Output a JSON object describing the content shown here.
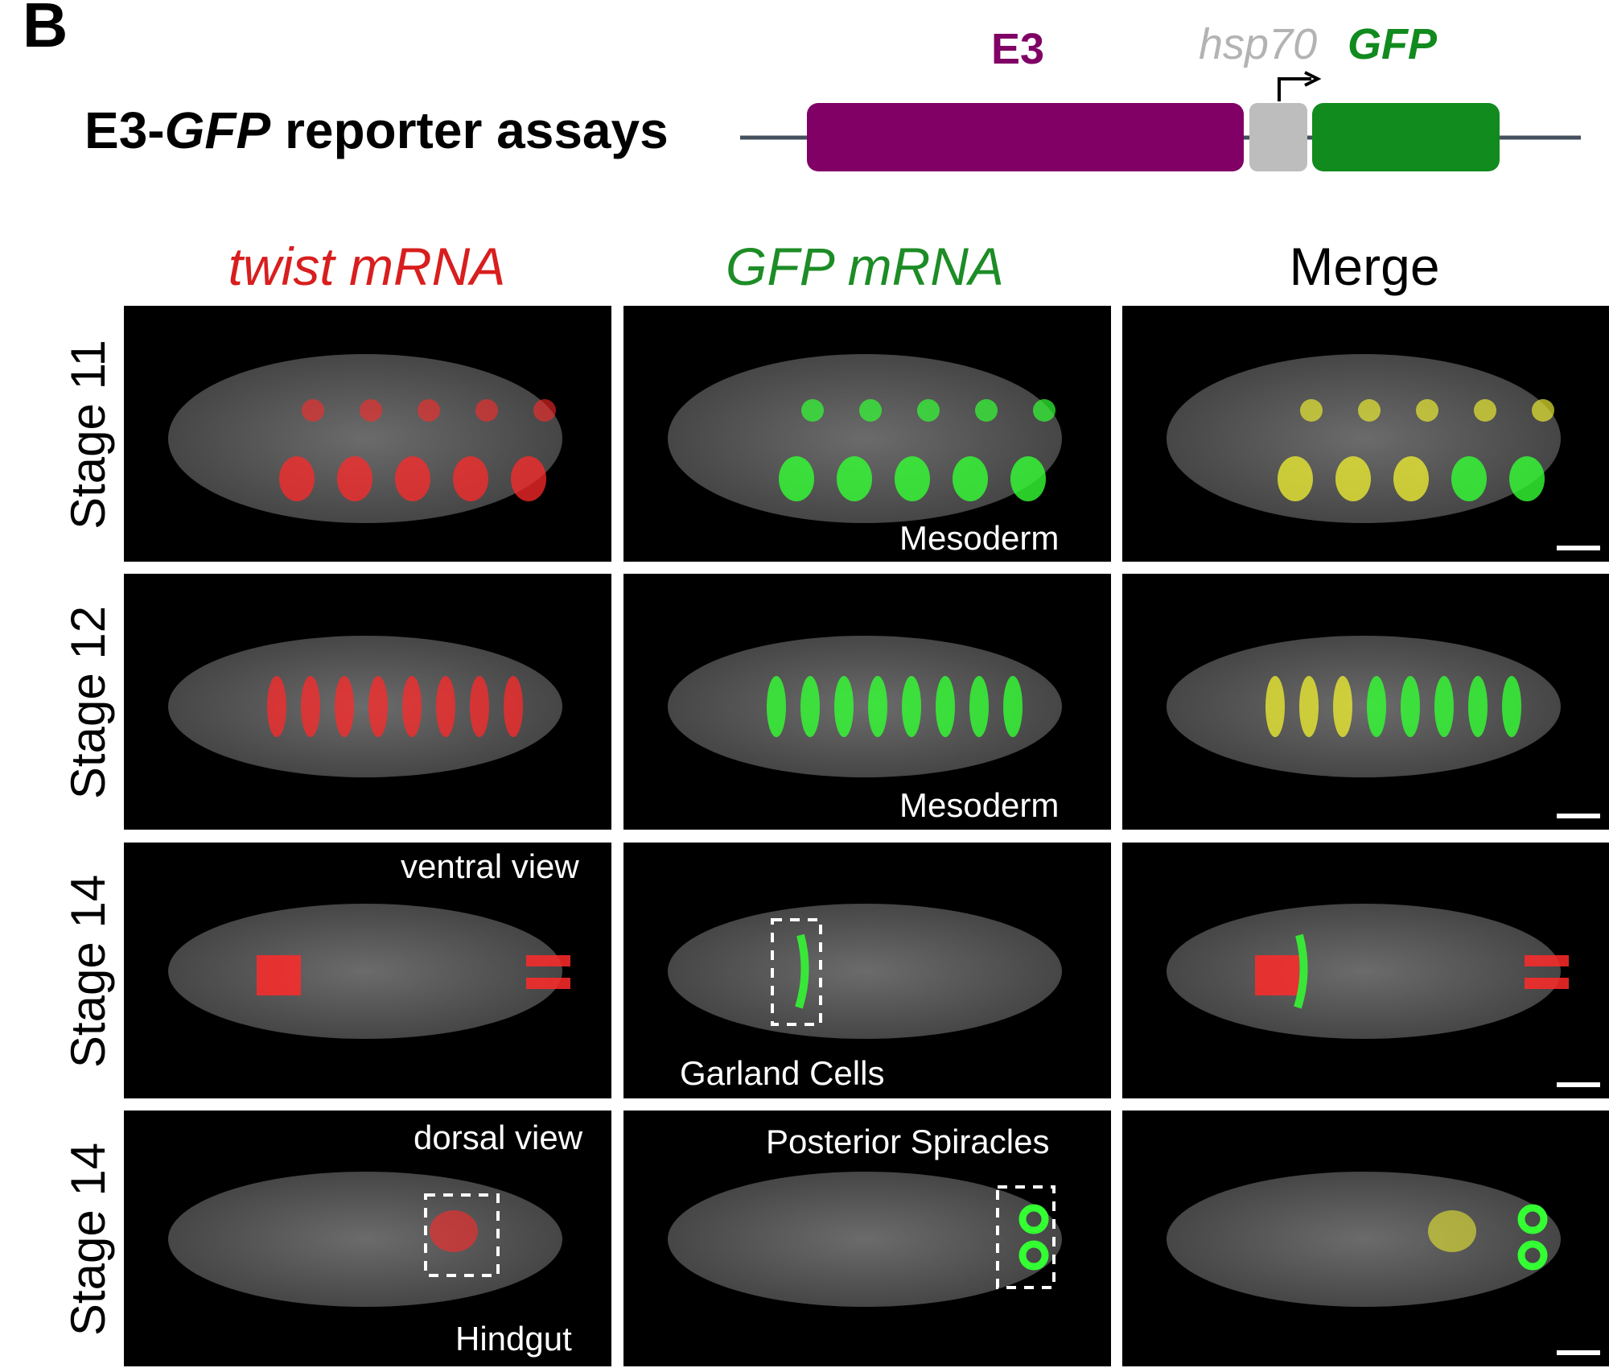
{
  "panel_letter": "B",
  "title": {
    "prefix": "E3-",
    "gene": "GFP",
    "suffix": " reporter assays"
  },
  "construct": {
    "enhancer_label": "E3",
    "promoter_label": "hsp70",
    "reporter_label": "GFP",
    "colors": {
      "enhancer": "#800066",
      "promoter": "#bdbdbd",
      "reporter": "#118a1e",
      "backbone": "#45505e"
    }
  },
  "columns": [
    {
      "label": "twist mRNA",
      "color": "#d81e1e"
    },
    {
      "label": "GFP mRNA",
      "color": "#1d8c26"
    },
    {
      "label": "Merge",
      "color": "#000000"
    }
  ],
  "rows": [
    {
      "label": "Stage 11",
      "annotations": {
        "twist": "",
        "gfp_bottom": "Mesoderm",
        "gfp_top": ""
      }
    },
    {
      "label": "Stage 12",
      "annotations": {
        "twist": "",
        "gfp_bottom": "Mesoderm",
        "gfp_top": ""
      }
    },
    {
      "label": "Stage 14",
      "annotations": {
        "twist_top": "ventral view",
        "gfp_bottom": "Garland Cells"
      }
    },
    {
      "label": "Stage 14",
      "annotations": {
        "twist_top": "dorsal view",
        "twist_bottom": "Hindgut",
        "gfp_top": "Posterior Spiracles"
      }
    }
  ],
  "signal_colors": {
    "twist": "#ff2a2a",
    "gfp": "#33ff33",
    "merge_overlap": "#e8e832",
    "nuclei": "#9a9a9a"
  }
}
